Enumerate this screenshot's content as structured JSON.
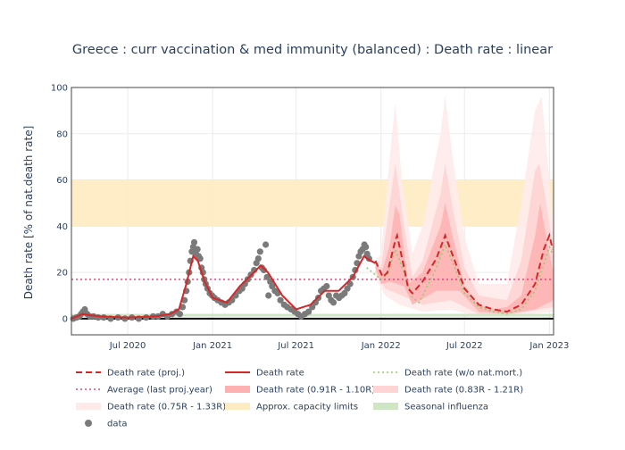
{
  "chart_data": {
    "type": "line",
    "title": "Greece : curr vaccination & med immunity (balanced) : Death rate : linear",
    "ylabel": "Death rate [% of nat.death rate]",
    "xlabel": "",
    "ylim": [
      -7,
      100
    ],
    "xlim": [
      "2020-03-01",
      "2023-01-10"
    ],
    "x_ticks": [
      {
        "date": "2020-07-01",
        "label": "Jul 2020"
      },
      {
        "date": "2021-01-01",
        "label": "Jan 2021"
      },
      {
        "date": "2021-07-01",
        "label": "Jul 2021"
      },
      {
        "date": "2022-01-01",
        "label": "Jan 2022"
      },
      {
        "date": "2022-07-01",
        "label": "Jul 2022"
      },
      {
        "date": "2023-01-01",
        "label": "Jan 2023"
      }
    ],
    "y_ticks": [
      0,
      20,
      40,
      60,
      80,
      100
    ],
    "grid": true,
    "legend_placement": "bottom",
    "capacity_band": [
      40,
      60
    ],
    "average_last_proj_year": 17,
    "seasonal_influenza": 1.5,
    "colors": {
      "proj": "#d62728",
      "rate": "#d62728",
      "wo_natmort": "#8fce6f",
      "average": "#e8457a",
      "band_inner": "#ffb0b0",
      "band_mid": "#ffd4d4",
      "band_outer": "#ffeaea",
      "capacity": "#ffebc2",
      "influenza": "#cfe6c4",
      "data": "#7a7a7a"
    },
    "series": [
      {
        "name": "Death rate (proj.)",
        "style": "dash",
        "points": [
          [
            "2021-12-20",
            25
          ],
          [
            "2022-01-05",
            18
          ],
          [
            "2022-01-15",
            20
          ],
          [
            "2022-02-01",
            34
          ],
          [
            "2022-02-05",
            36
          ],
          [
            "2022-02-20",
            22
          ],
          [
            "2022-03-01",
            13
          ],
          [
            "2022-03-10",
            11
          ],
          [
            "2022-04-01",
            16
          ],
          [
            "2022-05-01",
            26
          ],
          [
            "2022-05-20",
            36
          ],
          [
            "2022-06-10",
            25
          ],
          [
            "2022-07-01",
            13
          ],
          [
            "2022-08-01",
            6
          ],
          [
            "2022-09-01",
            4
          ],
          [
            "2022-10-01",
            3
          ],
          [
            "2022-11-01",
            6
          ],
          [
            "2022-12-01",
            15
          ],
          [
            "2022-12-20",
            30
          ],
          [
            "2023-01-01",
            36
          ],
          [
            "2023-01-08",
            30
          ]
        ]
      },
      {
        "name": "Death rate",
        "style": "solid",
        "points": [
          [
            "2020-03-01",
            0
          ],
          [
            "2020-03-25",
            2
          ],
          [
            "2020-04-10",
            1.5
          ],
          [
            "2020-05-01",
            1
          ],
          [
            "2020-07-01",
            0.5
          ],
          [
            "2020-09-01",
            1
          ],
          [
            "2020-10-01",
            2
          ],
          [
            "2020-10-20",
            4
          ],
          [
            "2020-11-05",
            15
          ],
          [
            "2020-11-20",
            27
          ],
          [
            "2020-11-30",
            25
          ],
          [
            "2020-12-15",
            16
          ],
          [
            "2021-01-01",
            9
          ],
          [
            "2021-02-01",
            7
          ],
          [
            "2021-03-01",
            14
          ],
          [
            "2021-04-01",
            20
          ],
          [
            "2021-04-15",
            23
          ],
          [
            "2021-05-01",
            20
          ],
          [
            "2021-06-01",
            10
          ],
          [
            "2021-07-01",
            4
          ],
          [
            "2021-08-01",
            6
          ],
          [
            "2021-09-01",
            12
          ],
          [
            "2021-10-01",
            12
          ],
          [
            "2021-11-01",
            18
          ],
          [
            "2021-11-25",
            27
          ],
          [
            "2021-12-10",
            25
          ],
          [
            "2021-12-20",
            24
          ]
        ]
      },
      {
        "name": "Death rate (w/o nat.mort.)",
        "style": "dot",
        "points": [
          [
            "2021-12-01",
            22
          ],
          [
            "2022-01-01",
            17
          ],
          [
            "2022-01-15",
            19
          ],
          [
            "2022-02-01",
            30
          ],
          [
            "2022-02-20",
            20
          ],
          [
            "2022-03-10",
            9
          ],
          [
            "2022-03-25",
            7
          ],
          [
            "2022-05-01",
            22
          ],
          [
            "2022-05-20",
            32
          ],
          [
            "2022-06-10",
            22
          ],
          [
            "2022-07-01",
            11
          ],
          [
            "2022-08-01",
            5
          ],
          [
            "2022-09-01",
            3
          ],
          [
            "2022-10-01",
            2
          ],
          [
            "2022-11-01",
            4
          ],
          [
            "2022-12-01",
            12
          ],
          [
            "2023-01-01",
            31
          ],
          [
            "2023-01-08",
            28
          ]
        ]
      },
      {
        "name": "Average (last proj.year)",
        "style": "avg"
      },
      {
        "name": "Death rate (0.91R - 1.10R)",
        "style": "band-inner",
        "upper": [
          [
            "2021-12-20",
            25
          ],
          [
            "2022-01-01",
            19
          ],
          [
            "2022-01-20",
            32
          ],
          [
            "2022-02-01",
            49
          ],
          [
            "2022-02-10",
            45
          ],
          [
            "2022-03-01",
            15
          ],
          [
            "2022-04-01",
            20
          ],
          [
            "2022-05-10",
            40
          ],
          [
            "2022-05-20",
            50
          ],
          [
            "2022-06-05",
            36
          ],
          [
            "2022-07-01",
            14
          ],
          [
            "2022-08-01",
            6
          ],
          [
            "2022-09-01",
            4
          ],
          [
            "2022-10-01",
            5
          ],
          [
            "2022-11-01",
            10
          ],
          [
            "2022-12-01",
            36
          ],
          [
            "2022-12-12",
            50
          ],
          [
            "2023-01-01",
            28
          ],
          [
            "2023-01-10",
            20
          ]
        ],
        "lower": [
          [
            "2023-01-10",
            8
          ],
          [
            "2022-12-01",
            4
          ],
          [
            "2022-10-01",
            2
          ],
          [
            "2022-08-01",
            3
          ],
          [
            "2022-06-20",
            12
          ],
          [
            "2022-05-01",
            12
          ],
          [
            "2022-03-10",
            6
          ],
          [
            "2022-02-20",
            14
          ],
          [
            "2022-01-20",
            16
          ],
          [
            "2022-01-01",
            15
          ],
          [
            "2021-12-20",
            22
          ]
        ]
      },
      {
        "name": "Death rate (0.83R - 1.21R)",
        "style": "band-mid",
        "upper": [
          [
            "2021-12-20",
            25
          ],
          [
            "2022-01-01",
            22
          ],
          [
            "2022-01-20",
            50
          ],
          [
            "2022-02-01",
            67
          ],
          [
            "2022-02-20",
            40
          ],
          [
            "2022-03-10",
            18
          ],
          [
            "2022-04-01",
            25
          ],
          [
            "2022-05-10",
            54
          ],
          [
            "2022-05-20",
            67
          ],
          [
            "2022-06-05",
            48
          ],
          [
            "2022-07-01",
            22
          ],
          [
            "2022-08-01",
            10
          ],
          [
            "2022-10-01",
            8
          ],
          [
            "2022-11-01",
            25
          ],
          [
            "2022-12-01",
            64
          ],
          [
            "2022-12-10",
            67
          ],
          [
            "2022-12-25",
            50
          ],
          [
            "2023-01-10",
            30
          ]
        ],
        "lower": [
          [
            "2023-01-10",
            5
          ],
          [
            "2022-10-01",
            1.5
          ],
          [
            "2022-08-01",
            2
          ],
          [
            "2022-06-01",
            8
          ],
          [
            "2022-04-01",
            6
          ],
          [
            "2022-02-15",
            10
          ],
          [
            "2022-01-10",
            13
          ],
          [
            "2021-12-20",
            20
          ]
        ]
      },
      {
        "name": "Death rate (0.75R - 1.33R)",
        "style": "band-outer",
        "upper": [
          [
            "2021-12-20",
            25
          ],
          [
            "2022-01-01",
            28
          ],
          [
            "2022-01-20",
            70
          ],
          [
            "2022-02-01",
            93
          ],
          [
            "2022-02-15",
            60
          ],
          [
            "2022-03-10",
            28
          ],
          [
            "2022-04-01",
            40
          ],
          [
            "2022-05-10",
            80
          ],
          [
            "2022-05-20",
            96
          ],
          [
            "2022-06-05",
            70
          ],
          [
            "2022-07-01",
            35
          ],
          [
            "2022-08-01",
            15
          ],
          [
            "2022-10-01",
            15
          ],
          [
            "2022-11-01",
            50
          ],
          [
            "2022-12-01",
            90
          ],
          [
            "2022-12-15",
            96
          ],
          [
            "2023-01-01",
            60
          ],
          [
            "2023-01-10",
            40
          ]
        ],
        "lower": [
          [
            "2023-01-10",
            3
          ],
          [
            "2022-10-01",
            1
          ],
          [
            "2022-08-01",
            1
          ],
          [
            "2022-06-01",
            4
          ],
          [
            "2022-04-01",
            3
          ],
          [
            "2022-02-10",
            6
          ],
          [
            "2022-01-10",
            10
          ],
          [
            "2021-12-20",
            18
          ]
        ]
      },
      {
        "name": "Approx. capacity limits",
        "style": "capacity"
      },
      {
        "name": "Seasonal influenza",
        "style": "influenza"
      },
      {
        "name": "data",
        "style": "markers",
        "points": [
          [
            "2020-03-05",
            0
          ],
          [
            "2020-03-12",
            0.5
          ],
          [
            "2020-03-18",
            1
          ],
          [
            "2020-03-22",
            2
          ],
          [
            "2020-03-26",
            3
          ],
          [
            "2020-03-30",
            4
          ],
          [
            "2020-04-04",
            2
          ],
          [
            "2020-04-10",
            1
          ],
          [
            "2020-04-18",
            1
          ],
          [
            "2020-04-28",
            0.5
          ],
          [
            "2020-05-10",
            0.5
          ],
          [
            "2020-05-25",
            0
          ],
          [
            "2020-06-10",
            0.5
          ],
          [
            "2020-06-25",
            0
          ],
          [
            "2020-07-10",
            0.5
          ],
          [
            "2020-07-25",
            0
          ],
          [
            "2020-08-10",
            0.5
          ],
          [
            "2020-08-25",
            1
          ],
          [
            "2020-09-05",
            1
          ],
          [
            "2020-09-15",
            2
          ],
          [
            "2020-09-25",
            1
          ],
          [
            "2020-10-05",
            2
          ],
          [
            "2020-10-15",
            3
          ],
          [
            "2020-10-22",
            2
          ],
          [
            "2020-10-28",
            5
          ],
          [
            "2020-11-01",
            8
          ],
          [
            "2020-11-05",
            12
          ],
          [
            "2020-11-08",
            16
          ],
          [
            "2020-11-11",
            20
          ],
          [
            "2020-11-14",
            25
          ],
          [
            "2020-11-17",
            29
          ],
          [
            "2020-11-20",
            31
          ],
          [
            "2020-11-22",
            33
          ],
          [
            "2020-11-24",
            30
          ],
          [
            "2020-11-26",
            28
          ],
          [
            "2020-11-29",
            30
          ],
          [
            "2020-12-02",
            27
          ],
          [
            "2020-12-05",
            26
          ],
          [
            "2020-12-08",
            22
          ],
          [
            "2020-12-11",
            20
          ],
          [
            "2020-12-14",
            17
          ],
          [
            "2020-12-17",
            15
          ],
          [
            "2020-12-21",
            13
          ],
          [
            "2020-12-26",
            11
          ],
          [
            "2020-12-31",
            10
          ],
          [
            "2021-01-05",
            9
          ],
          [
            "2021-01-12",
            8
          ],
          [
            "2021-01-20",
            7
          ],
          [
            "2021-01-28",
            6
          ],
          [
            "2021-02-05",
            7
          ],
          [
            "2021-02-12",
            8
          ],
          [
            "2021-02-20",
            10
          ],
          [
            "2021-02-28",
            12
          ],
          [
            "2021-03-06",
            13
          ],
          [
            "2021-03-12",
            15
          ],
          [
            "2021-03-18",
            17
          ],
          [
            "2021-03-25",
            19
          ],
          [
            "2021-04-01",
            21
          ],
          [
            "2021-04-06",
            24
          ],
          [
            "2021-04-10",
            26
          ],
          [
            "2021-04-14",
            29
          ],
          [
            "2021-04-18",
            22
          ],
          [
            "2021-04-22",
            21
          ],
          [
            "2021-04-26",
            32
          ],
          [
            "2021-04-29",
            18
          ],
          [
            "2021-05-02",
            10
          ],
          [
            "2021-05-06",
            16
          ],
          [
            "2021-05-10",
            14
          ],
          [
            "2021-05-16",
            12
          ],
          [
            "2021-05-22",
            11
          ],
          [
            "2021-05-28",
            8
          ],
          [
            "2021-06-05",
            6
          ],
          [
            "2021-06-12",
            5
          ],
          [
            "2021-06-20",
            4
          ],
          [
            "2021-06-28",
            3
          ],
          [
            "2021-07-05",
            2
          ],
          [
            "2021-07-12",
            1
          ],
          [
            "2021-07-20",
            2
          ],
          [
            "2021-07-28",
            3
          ],
          [
            "2021-08-05",
            5
          ],
          [
            "2021-08-12",
            7
          ],
          [
            "2021-08-18",
            9
          ],
          [
            "2021-08-24",
            12
          ],
          [
            "2021-08-30",
            13
          ],
          [
            "2021-09-05",
            14
          ],
          [
            "2021-09-10",
            10
          ],
          [
            "2021-09-15",
            8
          ],
          [
            "2021-09-20",
            7
          ],
          [
            "2021-09-26",
            10
          ],
          [
            "2021-10-02",
            9
          ],
          [
            "2021-10-08",
            10
          ],
          [
            "2021-10-14",
            11
          ],
          [
            "2021-10-20",
            13
          ],
          [
            "2021-10-26",
            15
          ],
          [
            "2021-11-01",
            18
          ],
          [
            "2021-11-06",
            21
          ],
          [
            "2021-11-10",
            24
          ],
          [
            "2021-11-14",
            27
          ],
          [
            "2021-11-18",
            29
          ],
          [
            "2021-11-22",
            30
          ],
          [
            "2021-11-26",
            32
          ],
          [
            "2021-11-29",
            31
          ],
          [
            "2021-12-02",
            28
          ],
          [
            "2021-12-06",
            26
          ]
        ]
      }
    ]
  }
}
